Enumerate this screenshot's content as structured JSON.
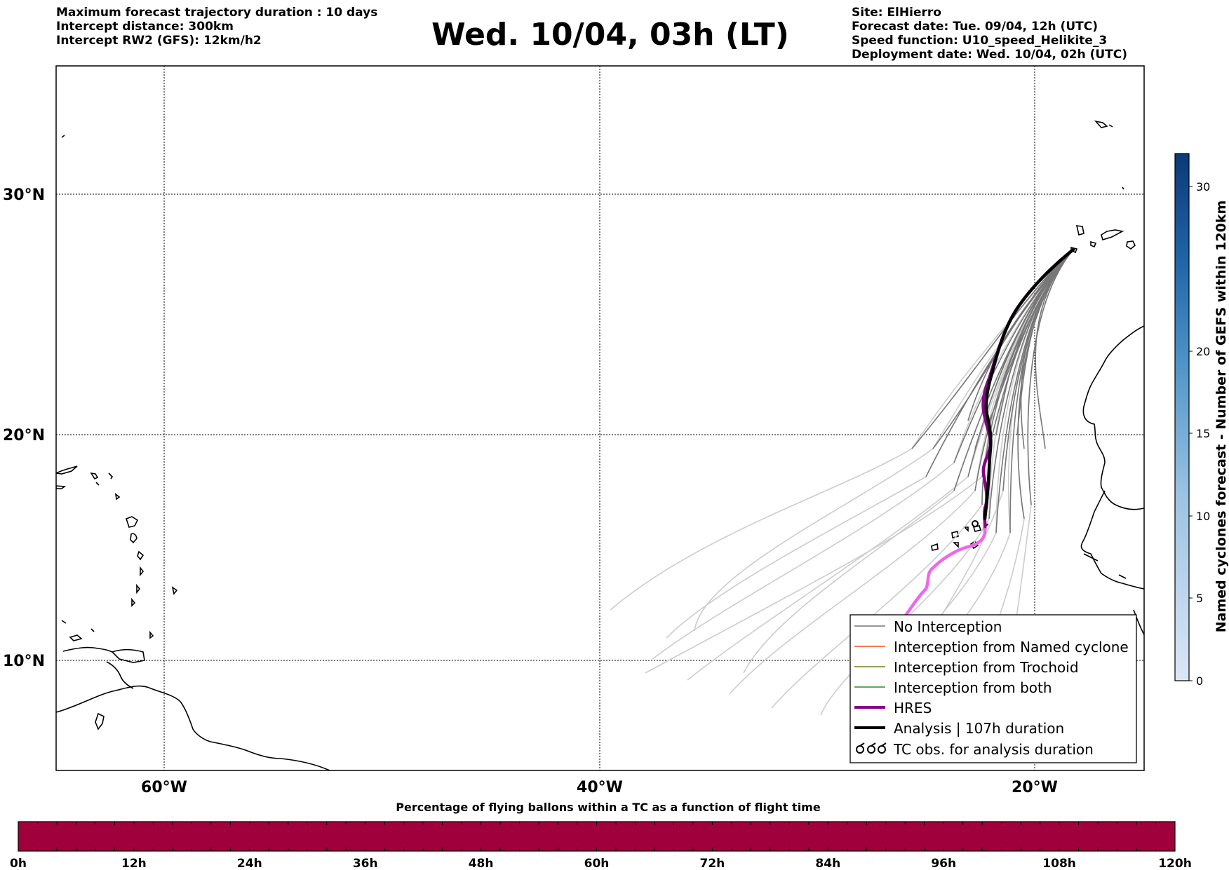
{
  "header": {
    "left": [
      "Maximum forecast trajectory duration : 10 days",
      "Intercept distance: 300km",
      "Intercept RW2 (GFS):  12km/h2"
    ],
    "title": "Wed. 10/04, 03h (LT)",
    "right": [
      "Site: ElHierro",
      "Forecast date: Tue. 09/04, 12h (UTC)",
      "Speed function: U10_speed_Helikite_3",
      "Deployment date: Wed. 10/04, 02h (UTC)"
    ]
  },
  "map": {
    "lat_labels": [
      "30°N",
      "20°N",
      "10°N"
    ],
    "lon_labels": [
      "60°W",
      "40°W",
      "20°W"
    ],
    "colors": {
      "no_interception": "#777777",
      "no_interception_late": "#cccccc",
      "named_cyclone": "#e8501a",
      "trochoid": "#7a7a20",
      "both": "#2e8b2e",
      "hres": "#8b008b",
      "hres_late": "#ee66ee",
      "analysis": "#000000"
    }
  },
  "legend": {
    "items": [
      {
        "label": "No Interception",
        "style": "no_interception"
      },
      {
        "label": "Interception from Named cyclone",
        "style": "named_cyclone"
      },
      {
        "label": "Interception from Trochoid",
        "style": "trochoid"
      },
      {
        "label": "Interception from both",
        "style": "both"
      },
      {
        "label": "HRES",
        "style": "hres"
      },
      {
        "label": "Analysis | 107h duration",
        "style": "analysis"
      },
      {
        "label": "TC obs. for analysis duration",
        "style": "tc_obs",
        "symbol": "ठठठ"
      }
    ]
  },
  "colorbar_right": {
    "label": "Named cyclones forecast - Number of GEFS within 120km",
    "ticks": [
      "0",
      "5",
      "10",
      "15",
      "20",
      "30"
    ],
    "range": [
      0,
      32
    ],
    "color_low": "#dbe7f5",
    "color_high": "#0b3a78"
  },
  "colorbar_bottom": {
    "title": "Percentage of flying ballons within a TC as a function of flight time",
    "ticks": [
      "0h",
      "12h",
      "24h",
      "36h",
      "48h",
      "60h",
      "72h",
      "84h",
      "96h",
      "108h",
      "120h"
    ],
    "fill_color": "#a0003c"
  }
}
